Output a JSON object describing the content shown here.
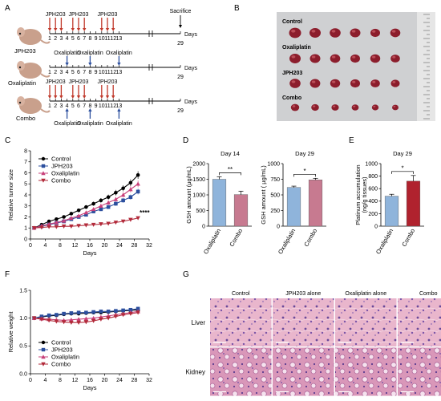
{
  "panels": {
    "A": {
      "letter": "A",
      "day_numbers": [
        "1",
        "2",
        "3",
        "4",
        "5",
        "6",
        "7",
        "8",
        "9",
        "10",
        "11",
        "12",
        "13"
      ],
      "day_29": "29",
      "days_label": "Days",
      "sacrifice_label": "Sacrifice",
      "jph_label": "JPH203",
      "oxali_label": "Oxaliplatin",
      "rows": [
        {
          "group": "JPH203"
        },
        {
          "group": "Oxaliplatin"
        },
        {
          "group": "Combo"
        }
      ]
    },
    "B": {
      "letter": "B",
      "rows": [
        "Control",
        "Oxaliplatin",
        "JPH203",
        "Combo"
      ]
    },
    "C": {
      "letter": "C",
      "significance": "****",
      "legend_markers": {
        "Control": "circle",
        "JPH203": "square",
        "Oxaliplatin": "triangle-up",
        "Combo": "triangle-down"
      }
    },
    "D": {
      "letter": "D"
    },
    "E": {
      "letter": "E"
    },
    "F": {
      "letter": "F"
    },
    "G": {
      "letter": "G",
      "columns": [
        "Control",
        "JPH203 alone",
        "Oxaliplatin alone",
        "Combo"
      ],
      "rows": [
        "Liver",
        "Kidney"
      ],
      "scale_bar": "100μm"
    }
  },
  "colors": {
    "control": "#000000",
    "jph203": "#2c4f9e",
    "oxaliplatin": "#c8407a",
    "combo": "#b22a3a",
    "bar_oxali": "#8fb4db",
    "bar_combo_d": "#c77a90",
    "bar_combo_e": "#b0222e",
    "arrow_red": "#c0392b",
    "arrow_blue": "#2c4f9e",
    "tissue_bg": "#e8b8cc",
    "tissue_nuclei": "#5a3d8a"
  },
  "chart_data": [
    {
      "id": "C",
      "type": "line",
      "xlabel": "Days",
      "ylabel": "Relative tumor size",
      "xlim": [
        0,
        32
      ],
      "ylim": [
        0,
        8
      ],
      "xticks": [
        0,
        4,
        8,
        12,
        16,
        20,
        24,
        28,
        32
      ],
      "yticks": [
        0,
        1,
        2,
        3,
        4,
        5,
        6,
        7,
        8
      ],
      "x": [
        1,
        3,
        5,
        7,
        9,
        11,
        13,
        15,
        17,
        19,
        21,
        23,
        25,
        27,
        29
      ],
      "series": [
        {
          "name": "Control",
          "values": [
            1.0,
            1.3,
            1.6,
            1.8,
            2.0,
            2.3,
            2.6,
            2.9,
            3.2,
            3.5,
            3.8,
            4.2,
            4.6,
            5.1,
            5.8
          ]
        },
        {
          "name": "JPH203",
          "values": [
            1.0,
            1.15,
            1.3,
            1.45,
            1.6,
            1.8,
            2.0,
            2.2,
            2.5,
            2.7,
            2.9,
            3.2,
            3.5,
            3.8,
            4.3
          ]
        },
        {
          "name": "Oxaliplatin",
          "values": [
            1.0,
            1.2,
            1.35,
            1.5,
            1.65,
            1.9,
            2.1,
            2.4,
            2.7,
            3.0,
            3.3,
            3.6,
            4.0,
            4.5,
            5.0
          ]
        },
        {
          "name": "Combo",
          "values": [
            1.0,
            1.05,
            1.1,
            1.1,
            1.15,
            1.15,
            1.2,
            1.25,
            1.3,
            1.35,
            1.4,
            1.5,
            1.6,
            1.75,
            1.9
          ]
        }
      ]
    },
    {
      "id": "D1",
      "type": "bar",
      "title": "Day 14",
      "ylabel": "GSH amount (μg/mL)",
      "categories": [
        "Oxaliplatin",
        "Combo"
      ],
      "values": [
        1500,
        1010
      ],
      "errors": [
        80,
        110
      ],
      "ylim": [
        0,
        2000
      ],
      "yticks": [
        0,
        500,
        1000,
        1500,
        2000
      ],
      "significance": "**"
    },
    {
      "id": "D2",
      "type": "bar",
      "title": "Day 29",
      "ylabel": "GSH amount ( μg/mL)",
      "categories": [
        "Oxaliplatin",
        "Combo"
      ],
      "values": [
        620,
        740
      ],
      "errors": [
        20,
        25
      ],
      "ylim": [
        0,
        1000
      ],
      "yticks": [
        0,
        250,
        500,
        750,
        1000
      ],
      "significance": "*"
    },
    {
      "id": "E",
      "type": "bar",
      "title": "Day 29",
      "ylabel": "Platinum accumulation\n(ng/g tissues)",
      "categories": [
        "Oxaliplatin",
        "Combo"
      ],
      "values": [
        480,
        720
      ],
      "errors": [
        30,
        90
      ],
      "ylim": [
        0,
        1000
      ],
      "yticks": [
        0,
        200,
        400,
        600,
        800,
        1000
      ],
      "significance": "*"
    },
    {
      "id": "F",
      "type": "line",
      "xlabel": "Days",
      "ylabel": "Relative weight",
      "xlim": [
        0,
        32
      ],
      "ylim": [
        0,
        1.5
      ],
      "xticks": [
        0,
        4,
        8,
        12,
        16,
        20,
        24,
        28,
        32
      ],
      "yticks": [
        0.0,
        0.5,
        1.0,
        1.5
      ],
      "x": [
        1,
        3,
        5,
        7,
        9,
        11,
        13,
        15,
        17,
        19,
        21,
        23,
        25,
        27,
        29
      ],
      "series": [
        {
          "name": "Control",
          "values": [
            1.0,
            1.02,
            1.04,
            1.05,
            1.07,
            1.08,
            1.08,
            1.09,
            1.1,
            1.1,
            1.11,
            1.12,
            1.13,
            1.14,
            1.15
          ]
        },
        {
          "name": "JPH203",
          "values": [
            1.0,
            1.03,
            1.05,
            1.06,
            1.08,
            1.09,
            1.1,
            1.1,
            1.11,
            1.12,
            1.12,
            1.13,
            1.14,
            1.15,
            1.17
          ]
        },
        {
          "name": "Oxaliplatin",
          "values": [
            1.0,
            0.99,
            0.98,
            0.97,
            0.96,
            0.97,
            0.98,
            0.99,
            1.0,
            1.02,
            1.04,
            1.06,
            1.08,
            1.1,
            1.12
          ]
        },
        {
          "name": "Combo",
          "values": [
            1.0,
            0.98,
            0.96,
            0.94,
            0.93,
            0.92,
            0.92,
            0.93,
            0.95,
            0.98,
            1.0,
            1.03,
            1.06,
            1.08,
            1.1
          ]
        }
      ]
    }
  ]
}
